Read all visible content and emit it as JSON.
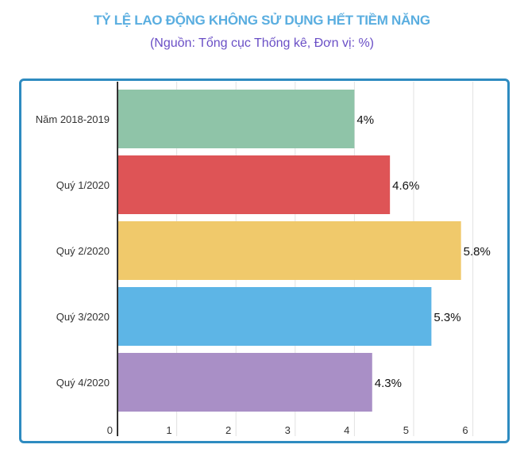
{
  "chart_data": {
    "type": "bar",
    "orientation": "horizontal",
    "title": "TỶ LỆ LAO ĐỘNG KHÔNG SỬ DỤNG HẾT TIỀM NĂNG",
    "subtitle": "(Nguồn: Tổng cục Thống kê, Đơn vị: %)",
    "categories": [
      "Năm 2018-2019",
      "Quý 1/2020",
      "Quý 2/2020",
      "Quý 3/2020",
      "Quý 4/2020"
    ],
    "values": [
      4,
      4.6,
      5.8,
      5.3,
      4.3
    ],
    "data_labels": [
      "4%",
      "4.6%",
      "5.8%",
      "5.3%",
      "4.3%"
    ],
    "colors": [
      "#8fc4a8",
      "#de5456",
      "#f0c96b",
      "#5db5e6",
      "#a98fc6"
    ],
    "xlim": [
      0,
      6.5
    ],
    "x_ticks": [
      "0",
      "1",
      "2",
      "3",
      "4",
      "5",
      "6"
    ],
    "grid": true,
    "legend": "none"
  }
}
